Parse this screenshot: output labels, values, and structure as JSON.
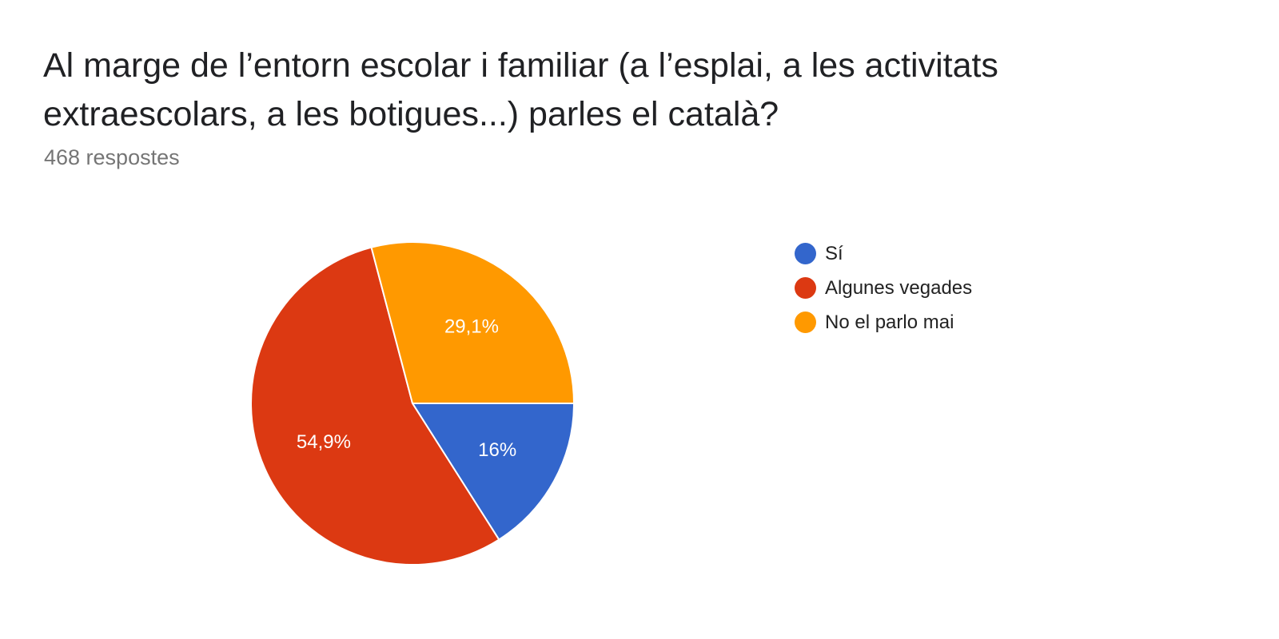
{
  "chart_data": {
    "type": "pie",
    "title": "Al marge de l’entorn escolar i familiar (a l’esplai, a les activitats extraescolars, a les botigues...) parles el català?",
    "subtitle": "468 respostes",
    "categories": [
      "Sí",
      "Algunes vegades",
      "No el parlo mai"
    ],
    "values": [
      16,
      54.9,
      29.1
    ],
    "value_labels": [
      "16%",
      "54,9%",
      "29,1%"
    ],
    "colors": [
      "#3366cc",
      "#dc3912",
      "#ff9900"
    ],
    "legend": "right"
  }
}
